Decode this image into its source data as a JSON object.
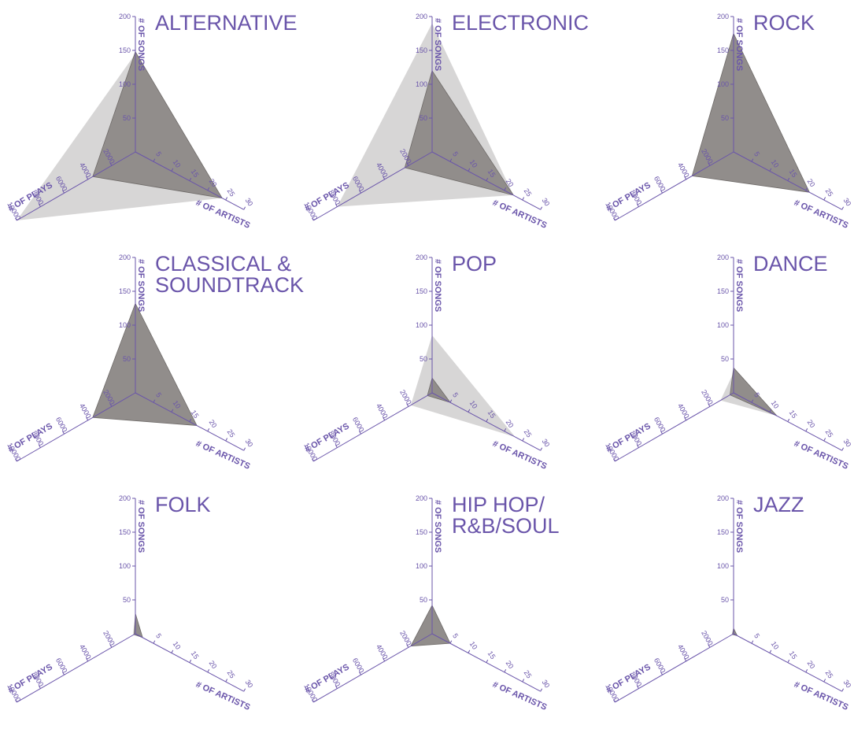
{
  "colors": {
    "accent": "#6a55aa",
    "polygon": "#8e8a88",
    "polygon_stroke": "#6e6a68",
    "light_polygon": "#d7d6d6",
    "axis": "#6a55aa"
  },
  "axes": {
    "songs_label": "# OF SONGS",
    "artists_label": "# OF ARTISTS",
    "plays_label": "# OF PLAYS",
    "songs_ticks": [
      "50",
      "100",
      "150",
      "200"
    ],
    "artists_ticks": [
      "5",
      "10",
      "15",
      "20",
      "25",
      "30"
    ],
    "plays_ticks": [
      "2000",
      "4000",
      "6000",
      "8000",
      "10000"
    ]
  },
  "chart_data": [
    {
      "type": "radar",
      "title_lines": [
        "ALTERNATIVE"
      ],
      "axes": [
        "# OF SONGS",
        "# OF ARTISTS",
        "# OF PLAYS"
      ],
      "ranges": {
        "songs": [
          0,
          200
        ],
        "artists": [
          0,
          30
        ],
        "plays": [
          0,
          10000
        ]
      },
      "series": [
        {
          "songs": 145,
          "artists": 24,
          "plays": 10000
        },
        {
          "songs": 148,
          "artists": 24,
          "plays": 3600
        }
      ]
    },
    {
      "type": "radar",
      "title_lines": [
        "ELECTRONIC"
      ],
      "axes": [
        "# OF SONGS",
        "# OF ARTISTS",
        "# OF PLAYS"
      ],
      "ranges": {
        "songs": [
          0,
          200
        ],
        "artists": [
          0,
          30
        ],
        "plays": [
          0,
          10000
        ]
      },
      "series": [
        {
          "songs": 190,
          "artists": 22.5,
          "plays": 8000
        },
        {
          "songs": 120,
          "artists": 22.5,
          "plays": 2300
        }
      ]
    },
    {
      "type": "radar",
      "title_lines": [
        "ROCK"
      ],
      "axes": [
        "# OF SONGS",
        "# OF ARTISTS",
        "# OF PLAYS"
      ],
      "ranges": {
        "songs": [
          0,
          200
        ],
        "artists": [
          0,
          30
        ],
        "plays": [
          0,
          10000
        ]
      },
      "series": [
        {
          "songs": 175,
          "artists": 21,
          "plays": 3500
        },
        {
          "songs": 175,
          "artists": 21,
          "plays": 3500
        }
      ]
    },
    {
      "type": "radar",
      "title_lines": [
        "CLASSICAL &",
        "SOUNDTRACK"
      ],
      "axes": [
        "# OF SONGS",
        "# OF ARTISTS",
        "# OF PLAYS"
      ],
      "ranges": {
        "songs": [
          0,
          200
        ],
        "artists": [
          0,
          30
        ],
        "plays": [
          0,
          10000
        ]
      },
      "series": [
        {
          "songs": 132,
          "artists": 17,
          "plays": 3600
        },
        {
          "songs": 132,
          "artists": 17,
          "plays": 3600
        }
      ]
    },
    {
      "type": "radar",
      "title_lines": [
        "POP"
      ],
      "axes": [
        "# OF SONGS",
        "# OF ARTISTS",
        "# OF PLAYS"
      ],
      "ranges": {
        "songs": [
          0,
          200
        ],
        "artists": [
          0,
          30
        ],
        "plays": [
          0,
          10000
        ]
      },
      "series": [
        {
          "songs": 85,
          "artists": 23,
          "plays": 1800
        },
        {
          "songs": 22,
          "artists": 5,
          "plays": 400
        }
      ]
    },
    {
      "type": "radar",
      "title_lines": [
        "DANCE"
      ],
      "axes": [
        "# OF SONGS",
        "# OF ARTISTS",
        "# OF PLAYS"
      ],
      "ranges": {
        "songs": [
          0,
          200
        ],
        "artists": [
          0,
          30
        ],
        "plays": [
          0,
          10000
        ]
      },
      "series": [
        {
          "songs": 30,
          "artists": 12,
          "plays": 1100
        },
        {
          "songs": 37,
          "artists": 12,
          "plays": 300
        }
      ]
    },
    {
      "type": "radar",
      "title_lines": [
        "FOLK"
      ],
      "axes": [
        "# OF SONGS",
        "# OF ARTISTS",
        "# OF PLAYS"
      ],
      "ranges": {
        "songs": [
          0,
          200
        ],
        "artists": [
          0,
          30
        ],
        "plays": [
          0,
          10000
        ]
      },
      "series": [
        {
          "songs": 30,
          "artists": 2,
          "plays": 200
        },
        {
          "songs": 30,
          "artists": 2,
          "plays": 100
        }
      ]
    },
    {
      "type": "radar",
      "title_lines": [
        "HIP HOP/",
        "R&B/SOUL"
      ],
      "axes": [
        "# OF SONGS",
        "# OF ARTISTS",
        "# OF PLAYS"
      ],
      "ranges": {
        "songs": [
          0,
          200
        ],
        "artists": [
          0,
          30
        ],
        "plays": [
          0,
          10000
        ]
      },
      "series": [
        {
          "songs": 42,
          "artists": 5,
          "plays": 1800
        },
        {
          "songs": 42,
          "artists": 5,
          "plays": 1800
        }
      ]
    },
    {
      "type": "radar",
      "title_lines": [
        "JAZZ"
      ],
      "axes": [
        "# OF SONGS",
        "# OF ARTISTS",
        "# OF PLAYS"
      ],
      "ranges": {
        "songs": [
          0,
          200
        ],
        "artists": [
          0,
          30
        ],
        "plays": [
          0,
          10000
        ]
      },
      "series": [
        {
          "songs": 8,
          "artists": 1,
          "plays": 100
        },
        {
          "songs": 8,
          "artists": 1,
          "plays": 100
        }
      ]
    }
  ]
}
